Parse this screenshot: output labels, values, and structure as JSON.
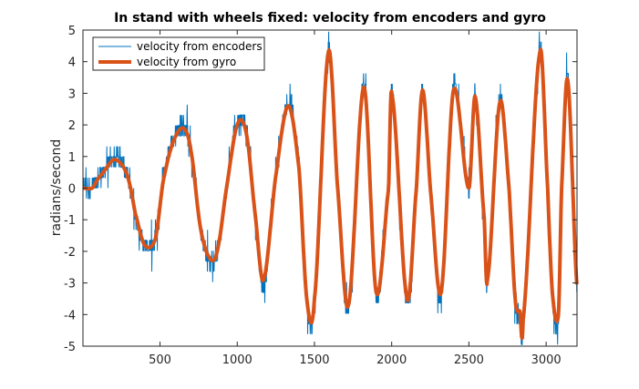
{
  "chart_data": {
    "type": "line",
    "title": "In stand with wheels fixed: velocity from encoders and gyro",
    "xlabel": "",
    "ylabel": "radians/second",
    "xlim": [
      1,
      3200
    ],
    "ylim": [
      -5,
      5
    ],
    "x_ticks": [
      500,
      1000,
      1500,
      2000,
      2500,
      3000
    ],
    "y_ticks": [
      -5,
      -4,
      -3,
      -2,
      -1,
      0,
      1,
      2,
      3,
      4,
      5
    ],
    "x_tick_labels": [
      "500",
      "1000",
      "1500",
      "2000",
      "2500",
      "3000"
    ],
    "y_tick_labels": [
      "-5",
      "-4",
      "-3",
      "-2",
      "-1",
      "0",
      "1",
      "2",
      "3",
      "4",
      "5"
    ],
    "grid": false,
    "legend_position": "top-left",
    "series": [
      {
        "name": "velocity from encoders",
        "color": "#0072BD",
        "style": "thin-noisy",
        "quantization": 0.33,
        "x": [
          1,
          60,
          100,
          130,
          200,
          260,
          300,
          340,
          400,
          470,
          520,
          580,
          650,
          700,
          760,
          820,
          870,
          930,
          1000,
          1060,
          1120,
          1170,
          1250,
          1330,
          1400,
          1450,
          1500,
          1590,
          1650,
          1720,
          1820,
          1900,
          1980,
          2000,
          2100,
          2160,
          2200,
          2250,
          2320,
          2400,
          2500,
          2540,
          2600,
          2620,
          2700,
          2760,
          2800,
          2830,
          2850,
          2960,
          3010,
          3040,
          3080,
          3100,
          3140,
          3200
        ],
        "y": [
          0,
          0,
          0.3,
          0.5,
          1.0,
          0.8,
          0.2,
          -0.9,
          -1.8,
          -1.6,
          0.3,
          1.5,
          2.0,
          1.2,
          -1.2,
          -2.3,
          -2.0,
          0.0,
          2.1,
          1.8,
          -1.0,
          -3.1,
          0.4,
          2.7,
          0.6,
          -3.7,
          -3.6,
          4.3,
          0.0,
          -3.8,
          3.3,
          -3.4,
          0.0,
          3.1,
          -3.6,
          0.0,
          3.2,
          0.0,
          -3.4,
          3.2,
          0.0,
          3.0,
          -1.0,
          -3.0,
          2.8,
          0.0,
          -3.6,
          -4.0,
          -4.3,
          4.4,
          0.0,
          -3.4,
          -4.1,
          0.0,
          3.5,
          -3.2
        ]
      },
      {
        "name": "velocity from gyro",
        "color": "#D95319",
        "style": "thick-smooth",
        "x": [
          1,
          60,
          100,
          130,
          200,
          260,
          300,
          340,
          400,
          470,
          520,
          580,
          650,
          700,
          760,
          820,
          870,
          930,
          1000,
          1060,
          1120,
          1170,
          1250,
          1330,
          1400,
          1450,
          1500,
          1590,
          1650,
          1720,
          1820,
          1900,
          1980,
          2000,
          2100,
          2160,
          2200,
          2250,
          2320,
          2400,
          2500,
          2540,
          2600,
          2620,
          2700,
          2760,
          2800,
          2830,
          2850,
          2960,
          3010,
          3040,
          3080,
          3100,
          3140,
          3200
        ],
        "y": [
          0,
          0,
          0.3,
          0.5,
          0.9,
          0.7,
          0.2,
          -0.8,
          -1.8,
          -1.6,
          0.2,
          1.4,
          1.9,
          1.2,
          -1.2,
          -2.2,
          -2.0,
          0.0,
          2.0,
          1.7,
          -1.0,
          -2.9,
          0.4,
          2.6,
          0.6,
          -3.5,
          -3.5,
          4.3,
          0.0,
          -3.7,
          3.2,
          -3.3,
          0.0,
          3.0,
          -3.5,
          0.0,
          3.1,
          0.0,
          -3.3,
          3.1,
          0.0,
          2.9,
          -1.0,
          -2.9,
          2.7,
          0.0,
          -3.5,
          -3.9,
          -4.2,
          4.3,
          0.0,
          -3.3,
          -4.0,
          0.0,
          3.4,
          -3.1
        ]
      }
    ]
  }
}
